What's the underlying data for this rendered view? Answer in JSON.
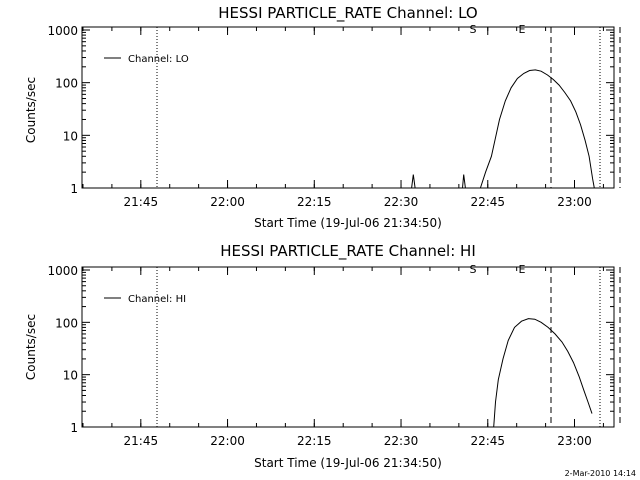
{
  "chart_data": [
    {
      "type": "line",
      "title": "HESSI PARTICLE_RATE Channel: LO",
      "xlabel": "Start Time (19-Jul-06 21:34:50)",
      "ylabel": "Counts/sec",
      "yscale": "log",
      "ylim": [
        1,
        1000
      ],
      "xlim_minutes_from_start": [
        0,
        92
      ],
      "x_ticks": [
        {
          "label": "21:45",
          "min": 10.17
        },
        {
          "label": "22:00",
          "min": 25.17
        },
        {
          "label": "22:15",
          "min": 40.17
        },
        {
          "label": "22:30",
          "min": 55.17
        },
        {
          "label": "22:45",
          "min": 70.17
        },
        {
          "label": "23:00",
          "min": 85.17
        }
      ],
      "y_ticks": [
        {
          "label": "1",
          "v": 1
        },
        {
          "label": "10",
          "v": 10
        },
        {
          "label": "100",
          "v": 100
        },
        {
          "label": "1000",
          "v": 1000
        }
      ],
      "series": [
        {
          "name": "Channel: LO",
          "points": [
            [
              57.0,
              1
            ],
            [
              57.3,
              1.8
            ],
            [
              57.6,
              1
            ],
            [
              65.8,
              1
            ],
            [
              66.0,
              1.8
            ],
            [
              66.3,
              1
            ],
            [
              68.9,
              1
            ],
            [
              69.8,
              2
            ],
            [
              70.8,
              4
            ],
            [
              71.5,
              9
            ],
            [
              72.2,
              20
            ],
            [
              73.2,
              45
            ],
            [
              74.2,
              80
            ],
            [
              75.3,
              120
            ],
            [
              76.4,
              150
            ],
            [
              77.4,
              170
            ],
            [
              78.4,
              175
            ],
            [
              79.4,
              165
            ],
            [
              80.5,
              140
            ],
            [
              81.5,
              115
            ],
            [
              82.5,
              90
            ],
            [
              83.5,
              65
            ],
            [
              84.5,
              45
            ],
            [
              85.4,
              28
            ],
            [
              86.2,
              16
            ],
            [
              87.0,
              8
            ],
            [
              87.7,
              4
            ],
            [
              88.3,
              1.5
            ],
            [
              88.6,
              1
            ]
          ]
        }
      ],
      "markers": {
        "start_label": "S",
        "end_label": "E"
      },
      "legend_position": "top-left"
    },
    {
      "type": "line",
      "title": "HESSI PARTICLE_RATE Channel: HI",
      "xlabel": "Start Time (19-Jul-06 21:34:50)",
      "ylabel": "Counts/sec",
      "yscale": "log",
      "ylim": [
        1,
        1000
      ],
      "xlim_minutes_from_start": [
        0,
        92
      ],
      "x_ticks": [
        {
          "label": "21:45",
          "min": 10.17
        },
        {
          "label": "22:00",
          "min": 25.17
        },
        {
          "label": "22:15",
          "min": 40.17
        },
        {
          "label": "22:30",
          "min": 55.17
        },
        {
          "label": "22:45",
          "min": 70.17
        },
        {
          "label": "23:00",
          "min": 85.17
        }
      ],
      "y_ticks": [
        {
          "label": "1",
          "v": 1
        },
        {
          "label": "10",
          "v": 10
        },
        {
          "label": "100",
          "v": 100
        },
        {
          "label": "1000",
          "v": 1000
        }
      ],
      "series": [
        {
          "name": "Channel: HI",
          "points": [
            [
              71.2,
              1
            ],
            [
              71.5,
              3
            ],
            [
              72.0,
              8
            ],
            [
              72.8,
              20
            ],
            [
              73.7,
              45
            ],
            [
              74.8,
              80
            ],
            [
              76.0,
              105
            ],
            [
              77.2,
              118
            ],
            [
              78.3,
              115
            ],
            [
              79.4,
              100
            ],
            [
              80.6,
              80
            ],
            [
              81.8,
              60
            ],
            [
              83.0,
              42
            ],
            [
              84.0,
              28
            ],
            [
              85.0,
              17
            ],
            [
              86.0,
              9
            ],
            [
              86.8,
              5
            ],
            [
              87.5,
              3
            ],
            [
              88.2,
              1.8
            ]
          ]
        }
      ],
      "markers": {
        "start_label": "S",
        "end_label": "E"
      },
      "legend_position": "top-left"
    }
  ],
  "timestamp": "2-Mar-2010 14:14",
  "colors": {
    "line": "#000000",
    "background": "#ffffff"
  }
}
